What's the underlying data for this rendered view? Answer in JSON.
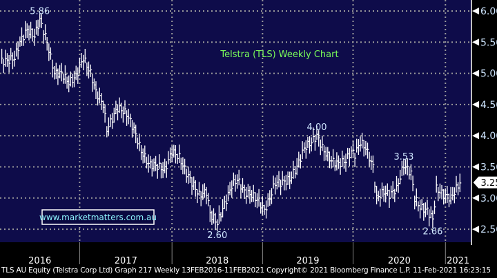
{
  "chart_data": {
    "type": "line",
    "title": "Telstra (TLS) Weekly Chart",
    "x_unit": "week index from 13FEB2016",
    "ylim": [
      2.3,
      6.05
    ],
    "y_ticks": [
      "6.00",
      "5.50",
      "5.00",
      "4.50",
      "4.00",
      "3.50",
      "3.00",
      "2.50"
    ],
    "y_tick_values": [
      6.0,
      5.5,
      5.0,
      4.5,
      4.0,
      3.5,
      3.0,
      2.5
    ],
    "x_year_labels": [
      "2016",
      "2017",
      "2018",
      "2019",
      "2020",
      "2021"
    ],
    "x_year_starts": [
      44,
      95,
      145,
      195,
      246
    ],
    "x_range": [
      0,
      260
    ],
    "grid": true,
    "series": [
      {
        "name": "TLS AU Equity",
        "points": [
          [
            0,
            5.2
          ],
          [
            4,
            5.2
          ],
          [
            8,
            5.25
          ],
          [
            11,
            5.5
          ],
          [
            15,
            5.7
          ],
          [
            19,
            5.6
          ],
          [
            22,
            5.86
          ],
          [
            26,
            5.5
          ],
          [
            30,
            5.0
          ],
          [
            34,
            5.0
          ],
          [
            38,
            4.85
          ],
          [
            42,
            4.95
          ],
          [
            46,
            5.25
          ],
          [
            50,
            5.0
          ],
          [
            53,
            4.7
          ],
          [
            57,
            4.5
          ],
          [
            59,
            4.1
          ],
          [
            65,
            4.45
          ],
          [
            70,
            4.35
          ],
          [
            74,
            4.1
          ],
          [
            78,
            3.75
          ],
          [
            82,
            3.55
          ],
          [
            88,
            3.5
          ],
          [
            91,
            3.45
          ],
          [
            95,
            3.75
          ],
          [
            99,
            3.65
          ],
          [
            103,
            3.4
          ],
          [
            107,
            3.2
          ],
          [
            110,
            3.05
          ],
          [
            114,
            3.1
          ],
          [
            116,
            2.75
          ],
          [
            120,
            2.6
          ],
          [
            124,
            2.9
          ],
          [
            128,
            3.2
          ],
          [
            131,
            3.3
          ],
          [
            135,
            3.1
          ],
          [
            139,
            3.05
          ],
          [
            143,
            2.95
          ],
          [
            146,
            2.8
          ],
          [
            149,
            3.0
          ],
          [
            152,
            3.25
          ],
          [
            156,
            3.25
          ],
          [
            160,
            3.3
          ],
          [
            164,
            3.5
          ],
          [
            168,
            3.8
          ],
          [
            172,
            3.9
          ],
          [
            175,
            4.0
          ],
          [
            179,
            3.75
          ],
          [
            183,
            3.6
          ],
          [
            187,
            3.55
          ],
          [
            191,
            3.6
          ],
          [
            194,
            3.75
          ],
          [
            196,
            3.7
          ],
          [
            199,
            3.9
          ],
          [
            202,
            3.8
          ],
          [
            206,
            3.5
          ],
          [
            208,
            3.0
          ],
          [
            212,
            3.1
          ],
          [
            215,
            3.05
          ],
          [
            219,
            3.15
          ],
          [
            223,
            3.53
          ],
          [
            227,
            3.4
          ],
          [
            229,
            3.0
          ],
          [
            232,
            2.85
          ],
          [
            236,
            2.8
          ],
          [
            239,
            2.66
          ],
          [
            241,
            3.15
          ],
          [
            245,
            3.05
          ],
          [
            249,
            3.0
          ],
          [
            252,
            3.15
          ],
          [
            254,
            3.25
          ]
        ]
      }
    ],
    "annotations": [
      {
        "text": "5.86",
        "week": 22,
        "value": 5.86,
        "position": "above"
      },
      {
        "text": "2.60",
        "week": 120,
        "value": 2.6,
        "position": "below"
      },
      {
        "text": "4.00",
        "week": 175,
        "value": 4.0,
        "position": "above"
      },
      {
        "text": "3.53",
        "week": 223,
        "value": 3.53,
        "position": "above"
      },
      {
        "text": "2.66",
        "week": 239,
        "value": 2.66,
        "position": "below"
      }
    ],
    "last_price": "3.25",
    "last_price_value": 3.25,
    "watermark": "www.marketmatters.com.au"
  },
  "colors": {
    "plot_bg": "#0e0c4a",
    "line": "#ffffff",
    "title": "#7cff5a",
    "grid": "#9a9a9a",
    "label": "#cfe6ff"
  },
  "footer": "TLS AU Equity (Telstra Corp Ltd) Graph 217  Weekly 13FEB2016-11FEB2021 Copyright© 2021 Bloomberg Finance L.P. 11-Feb-2021 16:23:15"
}
